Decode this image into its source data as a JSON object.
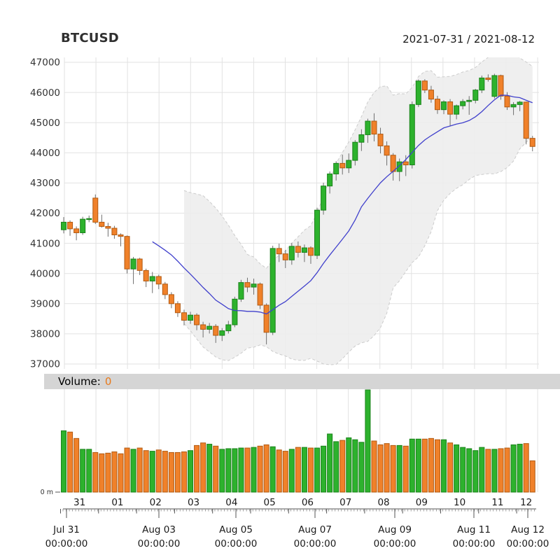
{
  "header": {
    "symbol": "BTCUSD",
    "date_range": "2021-07-31 / 2021-08-12"
  },
  "volume_panel": {
    "label": "Volume:",
    "value": "0",
    "axis_zero_label": "0 m"
  },
  "y_axis": {
    "ticks": [
      47000,
      46000,
      45000,
      44000,
      43000,
      42000,
      41000,
      40000,
      39000,
      38000,
      37000
    ]
  },
  "x_axis": {
    "day_labels": [
      "31",
      "01",
      "02",
      "03",
      "04",
      "05",
      "06",
      "07",
      "08",
      "09",
      "10",
      "11",
      "12"
    ],
    "major_labels": [
      {
        "line1": "Jul 31",
        "line2": "00:00:00"
      },
      {
        "line1": "Aug 03",
        "line2": "00:00:00"
      },
      {
        "line1": "Aug 05",
        "line2": "00:00:00"
      },
      {
        "line1": "Aug 07",
        "line2": "00:00:00"
      },
      {
        "line1": "Aug 09",
        "line2": "00:00:00"
      },
      {
        "line1": "Aug 11",
        "line2": "00:00:00"
      },
      {
        "line1": "Aug 12",
        "line2": "00:00:00"
      }
    ]
  },
  "chart_data": {
    "type": "candlestick+volume",
    "symbol": "BTCUSD",
    "title": "BTCUSD",
    "subtitle": "2021-07-31 / 2021-08-12",
    "interval": "4 hours",
    "n_bars": 75,
    "start": "2021-07-31 00:00:00",
    "end": "2021-08-12 08:00:00",
    "ylim": [
      37000,
      47000
    ],
    "volume_ylim_millions": [
      0,
      16
    ],
    "bars_per_day": 6,
    "indicators": {
      "sma_period": 15,
      "bbands": {
        "period": 20,
        "sd": 2
      }
    },
    "colors": {
      "up": "#2db22d",
      "up_border": "#1a821a",
      "down": "#f0812a",
      "down_border": "#b15a12",
      "wick": "#6f6f6f",
      "sma": "#4040cc",
      "band_fill": "#ededed",
      "band_border": "#cccccc",
      "grid": "#e2e2e2",
      "axis_text": "#333333",
      "strip_bg": "#d5d5d5",
      "volume_value": "#e87a1c"
    },
    "ohlc": [
      [
        41450,
        41870,
        41330,
        41700
      ],
      [
        41700,
        41760,
        41250,
        41480
      ],
      [
        41480,
        41560,
        41100,
        41350
      ],
      [
        41350,
        41880,
        41280,
        41800
      ],
      [
        41800,
        41920,
        41700,
        41820
      ],
      [
        42500,
        42620,
        41640,
        41700
      ],
      [
        41700,
        41950,
        41520,
        41560
      ],
      [
        41560,
        41680,
        41220,
        41500
      ],
      [
        41500,
        41580,
        41150,
        41280
      ],
      [
        41280,
        41330,
        40900,
        41230
      ],
      [
        41230,
        41260,
        40000,
        40150
      ],
      [
        40150,
        40550,
        39650,
        40480
      ],
      [
        40480,
        40520,
        39950,
        40100
      ],
      [
        40100,
        40160,
        39550,
        39750
      ],
      [
        39750,
        40050,
        39350,
        39900
      ],
      [
        39900,
        39960,
        39480,
        39650
      ],
      [
        39650,
        39720,
        39150,
        39300
      ],
      [
        39300,
        39380,
        38850,
        39000
      ],
      [
        39000,
        39080,
        38560,
        38700
      ],
      [
        38700,
        38800,
        38280,
        38450
      ],
      [
        38450,
        38730,
        38330,
        38620
      ],
      [
        38620,
        38680,
        38120,
        38300
      ],
      [
        38300,
        38400,
        37880,
        38150
      ],
      [
        38150,
        38360,
        38010,
        38250
      ],
      [
        38250,
        38320,
        37700,
        37950
      ],
      [
        37950,
        38190,
        37760,
        38100
      ],
      [
        38100,
        38430,
        38010,
        38300
      ],
      [
        38300,
        39230,
        38220,
        39150
      ],
      [
        39150,
        39790,
        39060,
        39700
      ],
      [
        39700,
        39860,
        39380,
        39550
      ],
      [
        39550,
        39830,
        39300,
        39650
      ],
      [
        39650,
        39700,
        38820,
        38950
      ],
      [
        38950,
        39010,
        37650,
        38050
      ],
      [
        38050,
        40920,
        37960,
        40830
      ],
      [
        40830,
        40990,
        40380,
        40650
      ],
      [
        40650,
        40780,
        40180,
        40450
      ],
      [
        40450,
        41010,
        40290,
        40900
      ],
      [
        40900,
        41060,
        40530,
        40700
      ],
      [
        40700,
        40960,
        40380,
        40850
      ],
      [
        40850,
        40900,
        40320,
        40600
      ],
      [
        40600,
        42180,
        40480,
        42100
      ],
      [
        42100,
        43010,
        41950,
        42900
      ],
      [
        42900,
        43380,
        42650,
        43300
      ],
      [
        43300,
        43720,
        43080,
        43650
      ],
      [
        43650,
        43940,
        43280,
        43500
      ],
      [
        43500,
        43980,
        43330,
        43750
      ],
      [
        43750,
        44420,
        43580,
        44350
      ],
      [
        44350,
        44780,
        44060,
        44600
      ],
      [
        44600,
        45130,
        44330,
        45050
      ],
      [
        45050,
        45310,
        44380,
        44620
      ],
      [
        44620,
        44830,
        43980,
        44230
      ],
      [
        44230,
        44380,
        43580,
        43920
      ],
      [
        43920,
        43990,
        43080,
        43380
      ],
      [
        43380,
        43810,
        43060,
        43700
      ],
      [
        43700,
        43920,
        43230,
        43600
      ],
      [
        43600,
        45700,
        43480,
        45600
      ],
      [
        45600,
        46430,
        45520,
        46380
      ],
      [
        46380,
        46440,
        45980,
        46080
      ],
      [
        46080,
        46220,
        45660,
        45780
      ],
      [
        45780,
        45890,
        45290,
        45430
      ],
      [
        45430,
        45740,
        45280,
        45690
      ],
      [
        45690,
        45780,
        44900,
        45280
      ],
      [
        45280,
        45600,
        45110,
        45560
      ],
      [
        45560,
        45780,
        45440,
        45700
      ],
      [
        45700,
        45880,
        45260,
        45740
      ],
      [
        45740,
        46120,
        45640,
        46080
      ],
      [
        46080,
        46560,
        45980,
        46480
      ],
      [
        46480,
        46600,
        46360,
        46430
      ],
      [
        45870,
        46620,
        45800,
        46560
      ],
      [
        46560,
        46590,
        45760,
        45880
      ],
      [
        45880,
        46010,
        45420,
        45520
      ],
      [
        45520,
        45680,
        45250,
        45600
      ],
      [
        45600,
        45720,
        45380,
        45680
      ],
      [
        45680,
        45700,
        44280,
        44480
      ],
      [
        44480,
        44560,
        44050,
        44210
      ]
    ],
    "volume_millions": [
      9.6,
      9.4,
      8.4,
      6.7,
      6.7,
      6.2,
      6.0,
      6.1,
      6.3,
      6.0,
      6.9,
      6.7,
      6.9,
      6.5,
      6.4,
      6.6,
      6.4,
      6.2,
      6.2,
      6.3,
      6.5,
      7.3,
      7.7,
      7.5,
      7.2,
      6.7,
      6.8,
      6.8,
      6.9,
      6.9,
      7.0,
      7.2,
      7.4,
      7.1,
      6.6,
      6.4,
      6.7,
      7.0,
      7.0,
      6.9,
      6.9,
      7.2,
      9.1,
      7.9,
      8.1,
      8.5,
      8.2,
      7.8,
      16.0,
      8.0,
      7.4,
      7.6,
      7.3,
      7.3,
      7.2,
      8.3,
      8.3,
      8.3,
      8.4,
      8.2,
      8.2,
      7.7,
      7.4,
      7.0,
      6.8,
      6.5,
      7.0,
      6.7,
      6.7,
      6.8,
      6.9,
      7.4,
      7.5,
      7.6,
      4.9
    ]
  }
}
